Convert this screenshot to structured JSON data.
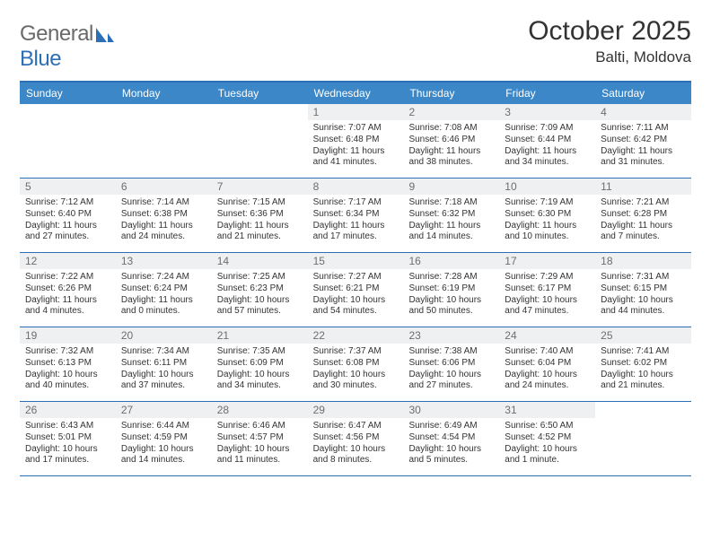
{
  "brand": {
    "general": "General",
    "blue": "Blue"
  },
  "title": "October 2025",
  "location": "Balti, Moldova",
  "colors": {
    "header_blue": "#3b87c8",
    "border_blue": "#2d6fb5",
    "daynum_bg": "#eef0f1",
    "daynum_fg": "#6e6e6e",
    "text": "#333333",
    "logo_gray": "#6a6a6a"
  },
  "dow": [
    "Sunday",
    "Monday",
    "Tuesday",
    "Wednesday",
    "Thursday",
    "Friday",
    "Saturday"
  ],
  "weeks": [
    [
      {
        "n": "",
        "sr": "",
        "ss": "",
        "dl": "",
        "empty": true
      },
      {
        "n": "",
        "sr": "",
        "ss": "",
        "dl": "",
        "empty": true
      },
      {
        "n": "",
        "sr": "",
        "ss": "",
        "dl": "",
        "empty": true
      },
      {
        "n": "1",
        "sr": "Sunrise: 7:07 AM",
        "ss": "Sunset: 6:48 PM",
        "dl": "Daylight: 11 hours and 41 minutes."
      },
      {
        "n": "2",
        "sr": "Sunrise: 7:08 AM",
        "ss": "Sunset: 6:46 PM",
        "dl": "Daylight: 11 hours and 38 minutes."
      },
      {
        "n": "3",
        "sr": "Sunrise: 7:09 AM",
        "ss": "Sunset: 6:44 PM",
        "dl": "Daylight: 11 hours and 34 minutes."
      },
      {
        "n": "4",
        "sr": "Sunrise: 7:11 AM",
        "ss": "Sunset: 6:42 PM",
        "dl": "Daylight: 11 hours and 31 minutes."
      }
    ],
    [
      {
        "n": "5",
        "sr": "Sunrise: 7:12 AM",
        "ss": "Sunset: 6:40 PM",
        "dl": "Daylight: 11 hours and 27 minutes."
      },
      {
        "n": "6",
        "sr": "Sunrise: 7:14 AM",
        "ss": "Sunset: 6:38 PM",
        "dl": "Daylight: 11 hours and 24 minutes."
      },
      {
        "n": "7",
        "sr": "Sunrise: 7:15 AM",
        "ss": "Sunset: 6:36 PM",
        "dl": "Daylight: 11 hours and 21 minutes."
      },
      {
        "n": "8",
        "sr": "Sunrise: 7:17 AM",
        "ss": "Sunset: 6:34 PM",
        "dl": "Daylight: 11 hours and 17 minutes."
      },
      {
        "n": "9",
        "sr": "Sunrise: 7:18 AM",
        "ss": "Sunset: 6:32 PM",
        "dl": "Daylight: 11 hours and 14 minutes."
      },
      {
        "n": "10",
        "sr": "Sunrise: 7:19 AM",
        "ss": "Sunset: 6:30 PM",
        "dl": "Daylight: 11 hours and 10 minutes."
      },
      {
        "n": "11",
        "sr": "Sunrise: 7:21 AM",
        "ss": "Sunset: 6:28 PM",
        "dl": "Daylight: 11 hours and 7 minutes."
      }
    ],
    [
      {
        "n": "12",
        "sr": "Sunrise: 7:22 AM",
        "ss": "Sunset: 6:26 PM",
        "dl": "Daylight: 11 hours and 4 minutes."
      },
      {
        "n": "13",
        "sr": "Sunrise: 7:24 AM",
        "ss": "Sunset: 6:24 PM",
        "dl": "Daylight: 11 hours and 0 minutes."
      },
      {
        "n": "14",
        "sr": "Sunrise: 7:25 AM",
        "ss": "Sunset: 6:23 PM",
        "dl": "Daylight: 10 hours and 57 minutes."
      },
      {
        "n": "15",
        "sr": "Sunrise: 7:27 AM",
        "ss": "Sunset: 6:21 PM",
        "dl": "Daylight: 10 hours and 54 minutes."
      },
      {
        "n": "16",
        "sr": "Sunrise: 7:28 AM",
        "ss": "Sunset: 6:19 PM",
        "dl": "Daylight: 10 hours and 50 minutes."
      },
      {
        "n": "17",
        "sr": "Sunrise: 7:29 AM",
        "ss": "Sunset: 6:17 PM",
        "dl": "Daylight: 10 hours and 47 minutes."
      },
      {
        "n": "18",
        "sr": "Sunrise: 7:31 AM",
        "ss": "Sunset: 6:15 PM",
        "dl": "Daylight: 10 hours and 44 minutes."
      }
    ],
    [
      {
        "n": "19",
        "sr": "Sunrise: 7:32 AM",
        "ss": "Sunset: 6:13 PM",
        "dl": "Daylight: 10 hours and 40 minutes."
      },
      {
        "n": "20",
        "sr": "Sunrise: 7:34 AM",
        "ss": "Sunset: 6:11 PM",
        "dl": "Daylight: 10 hours and 37 minutes."
      },
      {
        "n": "21",
        "sr": "Sunrise: 7:35 AM",
        "ss": "Sunset: 6:09 PM",
        "dl": "Daylight: 10 hours and 34 minutes."
      },
      {
        "n": "22",
        "sr": "Sunrise: 7:37 AM",
        "ss": "Sunset: 6:08 PM",
        "dl": "Daylight: 10 hours and 30 minutes."
      },
      {
        "n": "23",
        "sr": "Sunrise: 7:38 AM",
        "ss": "Sunset: 6:06 PM",
        "dl": "Daylight: 10 hours and 27 minutes."
      },
      {
        "n": "24",
        "sr": "Sunrise: 7:40 AM",
        "ss": "Sunset: 6:04 PM",
        "dl": "Daylight: 10 hours and 24 minutes."
      },
      {
        "n": "25",
        "sr": "Sunrise: 7:41 AM",
        "ss": "Sunset: 6:02 PM",
        "dl": "Daylight: 10 hours and 21 minutes."
      }
    ],
    [
      {
        "n": "26",
        "sr": "Sunrise: 6:43 AM",
        "ss": "Sunset: 5:01 PM",
        "dl": "Daylight: 10 hours and 17 minutes."
      },
      {
        "n": "27",
        "sr": "Sunrise: 6:44 AM",
        "ss": "Sunset: 4:59 PM",
        "dl": "Daylight: 10 hours and 14 minutes."
      },
      {
        "n": "28",
        "sr": "Sunrise: 6:46 AM",
        "ss": "Sunset: 4:57 PM",
        "dl": "Daylight: 10 hours and 11 minutes."
      },
      {
        "n": "29",
        "sr": "Sunrise: 6:47 AM",
        "ss": "Sunset: 4:56 PM",
        "dl": "Daylight: 10 hours and 8 minutes."
      },
      {
        "n": "30",
        "sr": "Sunrise: 6:49 AM",
        "ss": "Sunset: 4:54 PM",
        "dl": "Daylight: 10 hours and 5 minutes."
      },
      {
        "n": "31",
        "sr": "Sunrise: 6:50 AM",
        "ss": "Sunset: 4:52 PM",
        "dl": "Daylight: 10 hours and 1 minute."
      },
      {
        "n": "",
        "sr": "",
        "ss": "",
        "dl": "",
        "empty": true
      }
    ]
  ]
}
